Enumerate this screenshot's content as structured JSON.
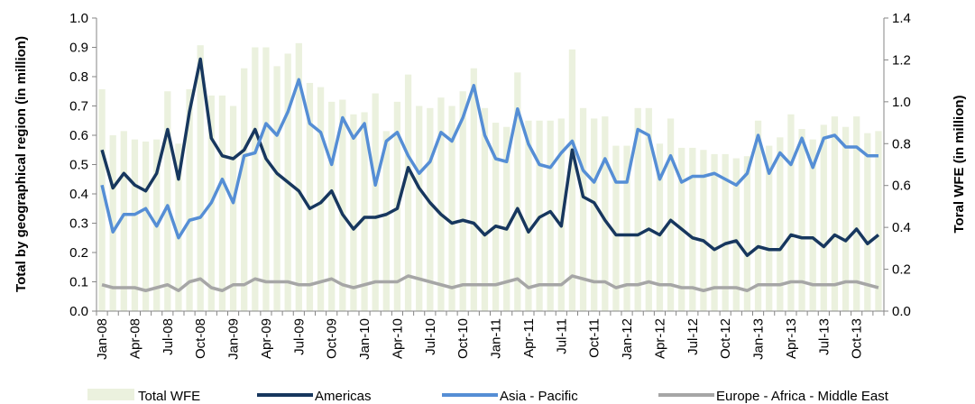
{
  "chart_data": {
    "type": "combo",
    "ylabel": "Total by geographical region (in million)",
    "y2label": "Toral WFE (in million)",
    "categories": [
      "Jan-08",
      null,
      null,
      "Apr-08",
      null,
      null,
      "Jul-08",
      null,
      null,
      "Oct-08",
      null,
      null,
      "Jan-09",
      null,
      null,
      "Apr-09",
      null,
      null,
      "Jul-09",
      null,
      null,
      "Oct-09",
      null,
      null,
      "Jan-10",
      null,
      null,
      "Apr-10",
      null,
      null,
      "Jul-10",
      null,
      null,
      "Oct-10",
      null,
      null,
      "Jan-11",
      null,
      null,
      "Apr-11",
      null,
      null,
      "Jul-11",
      null,
      null,
      "Oct-11",
      null,
      null,
      "Jan-12",
      null,
      null,
      "Apr-12",
      null,
      null,
      "Jul-12",
      null,
      null,
      "Oct-12",
      null,
      null,
      "Jan-13",
      null,
      null,
      "Apr-13",
      null,
      null,
      "Jul-13",
      null,
      null,
      "Oct-13",
      null,
      null
    ],
    "ylim": [
      0,
      1
    ],
    "yticks": [
      {
        "value": 0,
        "label": "0.0"
      },
      0.1,
      0.2,
      0.3,
      0.4,
      0.5,
      0.6,
      0.7,
      0.8,
      0.9,
      {
        "value": 1,
        "label": "1.0"
      }
    ],
    "y2lim": [
      0,
      1.4
    ],
    "y2ticks": [
      {
        "value": 0,
        "label": "0.0"
      },
      0.2,
      0.4,
      0.6,
      0.8,
      {
        "value": 1,
        "label": "1.0"
      },
      1.2,
      1.4
    ],
    "series": [
      {
        "name": "Total WFE",
        "type": "bar",
        "axis": "y2",
        "color": "#ebf1de",
        "values": [
          1.06,
          0.84,
          0.86,
          0.82,
          0.81,
          0.82,
          1.05,
          0.8,
          1.06,
          1.27,
          1.03,
          1.03,
          0.98,
          1.16,
          1.26,
          1.26,
          1.17,
          1.23,
          1.28,
          1.09,
          1.07,
          1.0,
          1.01,
          0.94,
          0.95,
          1.04,
          0.86,
          1.0,
          1.13,
          0.98,
          0.97,
          1.02,
          0.98,
          1.05,
          1.16,
          0.97,
          0.9,
          0.88,
          1.14,
          0.91,
          0.91,
          0.91,
          0.92,
          1.25,
          0.97,
          0.92,
          0.93,
          0.79,
          0.79,
          0.97,
          0.97,
          0.8,
          0.92,
          0.78,
          0.78,
          0.77,
          0.75,
          0.75,
          0.73,
          0.74,
          0.91,
          0.79,
          0.83,
          0.94,
          0.87,
          0.82,
          0.89,
          0.93,
          0.88,
          0.93,
          0.85,
          0.86
        ]
      },
      {
        "name": "Americas",
        "type": "line",
        "color": "#17375e",
        "values": [
          0.55,
          0.42,
          0.47,
          0.43,
          0.41,
          0.47,
          0.62,
          0.45,
          0.68,
          0.86,
          0.59,
          0.53,
          0.52,
          0.55,
          0.62,
          0.52,
          0.47,
          0.44,
          0.41,
          0.35,
          0.37,
          0.41,
          0.33,
          0.28,
          0.32,
          0.32,
          0.33,
          0.35,
          0.49,
          0.42,
          0.37,
          0.33,
          0.3,
          0.31,
          0.3,
          0.26,
          0.29,
          0.28,
          0.35,
          0.27,
          0.32,
          0.34,
          0.29,
          0.55,
          0.39,
          0.37,
          0.31,
          0.26,
          0.26,
          0.26,
          0.28,
          0.26,
          0.31,
          0.28,
          0.25,
          0.24,
          0.21,
          0.23,
          0.24,
          0.19,
          0.22,
          0.21,
          0.21,
          0.26,
          0.25,
          0.25,
          0.22,
          0.26,
          0.24,
          0.28,
          0.23,
          0.26
        ]
      },
      {
        "name": "Asia - Pacific",
        "type": "line",
        "color": "#558ed5",
        "values": [
          0.43,
          0.27,
          0.33,
          0.33,
          0.35,
          0.29,
          0.36,
          0.25,
          0.31,
          0.32,
          0.37,
          0.45,
          0.37,
          0.53,
          0.54,
          0.64,
          0.6,
          0.68,
          0.79,
          0.64,
          0.61,
          0.5,
          0.66,
          0.59,
          0.64,
          0.43,
          0.58,
          0.61,
          0.53,
          0.47,
          0.51,
          0.61,
          0.58,
          0.66,
          0.77,
          0.6,
          0.52,
          0.51,
          0.69,
          0.57,
          0.5,
          0.49,
          0.54,
          0.58,
          0.48,
          0.44,
          0.52,
          0.44,
          0.44,
          0.62,
          0.6,
          0.45,
          0.53,
          0.44,
          0.46,
          0.46,
          0.47,
          0.45,
          0.43,
          0.47,
          0.6,
          0.47,
          0.54,
          0.5,
          0.59,
          0.49,
          0.59,
          0.6,
          0.56,
          0.56,
          0.53,
          0.53
        ]
      },
      {
        "name": "Europe - Africa - Middle East",
        "type": "line",
        "color": "#a6a6a6",
        "values": [
          0.09,
          0.08,
          0.08,
          0.08,
          0.07,
          0.08,
          0.09,
          0.07,
          0.1,
          0.11,
          0.08,
          0.07,
          0.09,
          0.09,
          0.11,
          0.1,
          0.1,
          0.1,
          0.09,
          0.09,
          0.1,
          0.11,
          0.09,
          0.08,
          0.09,
          0.1,
          0.1,
          0.1,
          0.12,
          0.11,
          0.1,
          0.09,
          0.08,
          0.09,
          0.09,
          0.09,
          0.09,
          0.1,
          0.11,
          0.08,
          0.09,
          0.09,
          0.09,
          0.12,
          0.11,
          0.1,
          0.1,
          0.08,
          0.09,
          0.09,
          0.1,
          0.09,
          0.09,
          0.08,
          0.08,
          0.07,
          0.08,
          0.08,
          0.08,
          0.07,
          0.09,
          0.09,
          0.09,
          0.1,
          0.1,
          0.09,
          0.09,
          0.09,
          0.1,
          0.1,
          0.09,
          0.08
        ]
      }
    ]
  }
}
